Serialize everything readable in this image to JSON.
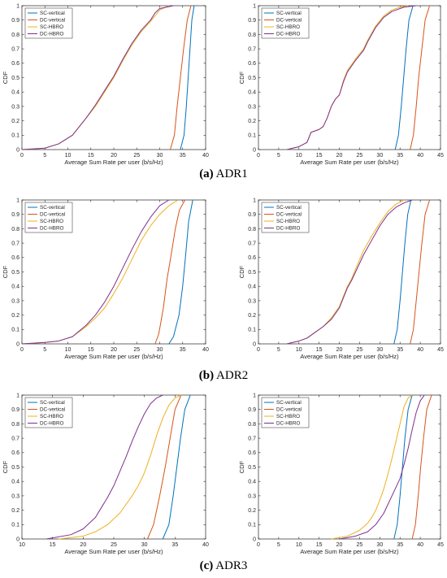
{
  "captions": [
    {
      "label": "(a)",
      "text": "ADR1"
    },
    {
      "label": "(b)",
      "text": "ADR2"
    },
    {
      "label": "(c)",
      "text": "ADR3"
    }
  ],
  "colors": {
    "SC-vertical": "#0072BD",
    "DC-vertical": "#D95319",
    "SC-HBRO": "#EDB120",
    "DC-HBRO": "#7E2F8E"
  },
  "chart_data": [
    {
      "id": "adr1-left",
      "type": "line",
      "grid": false,
      "legend_placement": "top-left",
      "xlabel": "Average Sum Rate per user (b/s/Hz)",
      "ylabel": "CDF",
      "xlim": [
        0,
        40
      ],
      "ylim": [
        0,
        1
      ],
      "xticks": [
        0,
        5,
        10,
        15,
        20,
        25,
        30,
        35,
        40
      ],
      "yticks": [
        0,
        0.1,
        0.2,
        0.3,
        0.4,
        0.5,
        0.6,
        0.7,
        0.8,
        0.9,
        1
      ],
      "series": [
        {
          "name": "SC-vertical",
          "x": [
            34.5,
            35.3,
            35.8,
            36.2,
            36.6,
            37.0,
            37.5
          ],
          "y": [
            0,
            0.1,
            0.3,
            0.5,
            0.7,
            0.9,
            1
          ]
        },
        {
          "name": "DC-vertical",
          "x": [
            32.3,
            33.2,
            33.8,
            34.5,
            35.2,
            36.0,
            36.8
          ],
          "y": [
            0,
            0.1,
            0.3,
            0.5,
            0.7,
            0.9,
            1
          ]
        },
        {
          "name": "SC-HBRO",
          "x": [
            0,
            5,
            8,
            11,
            14,
            16,
            18,
            20,
            22,
            24,
            26,
            28,
            29,
            30,
            32
          ],
          "y": [
            0,
            0.01,
            0.04,
            0.1,
            0.22,
            0.3,
            0.4,
            0.5,
            0.62,
            0.73,
            0.82,
            0.89,
            0.93,
            0.97,
            1
          ]
        },
        {
          "name": "DC-HBRO",
          "x": [
            0,
            5,
            8,
            11,
            14,
            16,
            18,
            20,
            22,
            24,
            26,
            28,
            29,
            30,
            33
          ],
          "y": [
            0,
            0.01,
            0.04,
            0.1,
            0.22,
            0.31,
            0.41,
            0.51,
            0.63,
            0.74,
            0.83,
            0.9,
            0.95,
            0.98,
            1
          ]
        }
      ]
    },
    {
      "id": "adr1-right",
      "type": "line",
      "grid": false,
      "legend_placement": "top-left",
      "xlabel": "Average Sum Rate per user (b/s/Hz)",
      "ylabel": "CDF",
      "xlim": [
        0,
        45
      ],
      "ylim": [
        0,
        1
      ],
      "xticks": [
        0,
        5,
        10,
        15,
        20,
        25,
        30,
        35,
        40,
        45
      ],
      "yticks": [
        0,
        0.1,
        0.2,
        0.3,
        0.4,
        0.5,
        0.6,
        0.7,
        0.8,
        0.9,
        1
      ],
      "series": [
        {
          "name": "SC-vertical",
          "x": [
            33.8,
            34.6,
            35.3,
            35.9,
            36.5,
            37.2,
            38.2
          ],
          "y": [
            0,
            0.1,
            0.3,
            0.5,
            0.7,
            0.9,
            1
          ]
        },
        {
          "name": "DC-vertical",
          "x": [
            37.5,
            38.3,
            39.0,
            39.6,
            40.4,
            41.2,
            42.3
          ],
          "y": [
            0,
            0.1,
            0.3,
            0.5,
            0.7,
            0.9,
            1
          ]
        },
        {
          "name": "SC-HBRO",
          "x": [
            7,
            10,
            12,
            13,
            15,
            16,
            17,
            18,
            19,
            20,
            21,
            22,
            24,
            26,
            27,
            29,
            31,
            33,
            35,
            37
          ],
          "y": [
            0,
            0.02,
            0.05,
            0.12,
            0.14,
            0.16,
            0.22,
            0.3,
            0.35,
            0.38,
            0.48,
            0.55,
            0.63,
            0.7,
            0.76,
            0.86,
            0.93,
            0.97,
            0.99,
            1
          ]
        },
        {
          "name": "DC-HBRO",
          "x": [
            7,
            10,
            12,
            13,
            15,
            16,
            17,
            18,
            19,
            20,
            21,
            22,
            24,
            26,
            27,
            29,
            31,
            33,
            36,
            39
          ],
          "y": [
            0,
            0.02,
            0.05,
            0.12,
            0.14,
            0.16,
            0.22,
            0.3,
            0.35,
            0.38,
            0.47,
            0.54,
            0.62,
            0.69,
            0.75,
            0.85,
            0.92,
            0.96,
            0.99,
            1
          ]
        }
      ]
    },
    {
      "id": "adr2-left",
      "type": "line",
      "grid": false,
      "legend_placement": "top-left",
      "xlabel": "Average Sum Rate per user (b/s/Hz)",
      "ylabel": "CDF",
      "xlim": [
        0,
        40
      ],
      "ylim": [
        0,
        1
      ],
      "xticks": [
        0,
        5,
        10,
        15,
        20,
        25,
        30,
        35,
        40
      ],
      "yticks": [
        0,
        0.1,
        0.2,
        0.3,
        0.4,
        0.5,
        0.6,
        0.7,
        0.8,
        0.9,
        1
      ],
      "series": [
        {
          "name": "SC-vertical",
          "x": [
            32.0,
            33.0,
            34.2,
            35.0,
            35.6,
            36.3,
            37.2
          ],
          "y": [
            0,
            0.05,
            0.2,
            0.4,
            0.6,
            0.85,
            1
          ]
        },
        {
          "name": "DC-vertical",
          "x": [
            29.0,
            29.8,
            30.8,
            31.6,
            32.5,
            33.4,
            34.3,
            35.5
          ],
          "y": [
            0,
            0.07,
            0.25,
            0.45,
            0.62,
            0.8,
            0.93,
            1
          ]
        },
        {
          "name": "SC-HBRO",
          "x": [
            0,
            5,
            8,
            11,
            14,
            16,
            18,
            20,
            22,
            24,
            26,
            28,
            30,
            32,
            34
          ],
          "y": [
            0,
            0.01,
            0.02,
            0.05,
            0.12,
            0.18,
            0.25,
            0.35,
            0.46,
            0.59,
            0.72,
            0.82,
            0.9,
            0.96,
            1
          ]
        },
        {
          "name": "DC-HBRO",
          "x": [
            0,
            5,
            8,
            11,
            14,
            16,
            18,
            20,
            22,
            24,
            26,
            28,
            30,
            32
          ],
          "y": [
            0,
            0.01,
            0.02,
            0.05,
            0.13,
            0.2,
            0.29,
            0.4,
            0.53,
            0.66,
            0.78,
            0.88,
            0.96,
            1
          ]
        }
      ]
    },
    {
      "id": "adr2-right",
      "type": "line",
      "grid": false,
      "legend_placement": "top-left",
      "xlabel": "Average Sum Rate per user (b/s/Hz)",
      "ylabel": "CDF",
      "xlim": [
        0,
        45
      ],
      "ylim": [
        0,
        1
      ],
      "xticks": [
        0,
        5,
        10,
        15,
        20,
        25,
        30,
        35,
        40,
        45
      ],
      "yticks": [
        0,
        0.1,
        0.2,
        0.3,
        0.4,
        0.5,
        0.6,
        0.7,
        0.8,
        0.9,
        1
      ],
      "series": [
        {
          "name": "SC-vertical",
          "x": [
            33.5,
            34.3,
            35.0,
            35.6,
            36.2,
            36.9,
            37.7
          ],
          "y": [
            0,
            0.1,
            0.3,
            0.5,
            0.7,
            0.9,
            1
          ]
        },
        {
          "name": "DC-vertical",
          "x": [
            37.5,
            38.3,
            39.0,
            39.7,
            40.4,
            41.2,
            42.3
          ],
          "y": [
            0,
            0.1,
            0.3,
            0.5,
            0.7,
            0.9,
            1
          ]
        },
        {
          "name": "SC-HBRO",
          "x": [
            7,
            10,
            12,
            14,
            16,
            18,
            20,
            21,
            22,
            23,
            24,
            26,
            28,
            30,
            32,
            34,
            36
          ],
          "y": [
            0,
            0.02,
            0.04,
            0.08,
            0.12,
            0.18,
            0.26,
            0.33,
            0.4,
            0.45,
            0.52,
            0.65,
            0.75,
            0.84,
            0.92,
            0.97,
            1
          ]
        },
        {
          "name": "DC-HBRO",
          "x": [
            7,
            10,
            12,
            14,
            16,
            18,
            20,
            21,
            22,
            23,
            24,
            26,
            28,
            30,
            32,
            34,
            36,
            38
          ],
          "y": [
            0,
            0.02,
            0.04,
            0.08,
            0.12,
            0.17,
            0.25,
            0.32,
            0.39,
            0.44,
            0.5,
            0.62,
            0.72,
            0.82,
            0.9,
            0.95,
            0.98,
            1
          ]
        }
      ]
    },
    {
      "id": "adr3-left",
      "type": "line",
      "grid": false,
      "legend_placement": "top-left",
      "xlabel": "Average Sum Rate per user (b/s/Hz)",
      "ylabel": "CDF",
      "xlim": [
        10,
        40
      ],
      "ylim": [
        0,
        1
      ],
      "xticks": [
        10,
        15,
        20,
        25,
        30,
        35,
        40
      ],
      "yticks": [
        0,
        0.1,
        0.2,
        0.3,
        0.4,
        0.5,
        0.6,
        0.7,
        0.8,
        0.9,
        1
      ],
      "series": [
        {
          "name": "SC-vertical",
          "x": [
            33.0,
            34.0,
            34.7,
            35.3,
            35.9,
            36.6,
            37.5
          ],
          "y": [
            0,
            0.1,
            0.3,
            0.5,
            0.7,
            0.9,
            1
          ]
        },
        {
          "name": "DC-vertical",
          "x": [
            30.5,
            31.5,
            32.5,
            33.4,
            34.2,
            35.0,
            36.0
          ],
          "y": [
            0,
            0.1,
            0.3,
            0.5,
            0.7,
            0.9,
            1
          ]
        },
        {
          "name": "SC-HBRO",
          "x": [
            16,
            20,
            22,
            24,
            26,
            27,
            28,
            29,
            30,
            31,
            32,
            33,
            34,
            35,
            36
          ],
          "y": [
            0,
            0.02,
            0.05,
            0.1,
            0.18,
            0.24,
            0.3,
            0.37,
            0.46,
            0.58,
            0.72,
            0.84,
            0.93,
            0.98,
            1
          ]
        },
        {
          "name": "DC-HBRO",
          "x": [
            14,
            18,
            20,
            22,
            23,
            24,
            25,
            26,
            27,
            28,
            29,
            30,
            31,
            32,
            33
          ],
          "y": [
            0,
            0.03,
            0.07,
            0.15,
            0.22,
            0.29,
            0.37,
            0.47,
            0.57,
            0.68,
            0.78,
            0.87,
            0.94,
            0.98,
            1
          ]
        }
      ]
    },
    {
      "id": "adr3-right",
      "type": "line",
      "grid": false,
      "legend_placement": "top-left",
      "xlabel": "Average Sum Rate per user (b/s/Hz)",
      "ylabel": "CDF",
      "xlim": [
        0,
        45
      ],
      "ylim": [
        0,
        1
      ],
      "xticks": [
        0,
        5,
        10,
        15,
        20,
        25,
        30,
        35,
        40,
        45
      ],
      "yticks": [
        0,
        0.1,
        0.2,
        0.3,
        0.4,
        0.5,
        0.6,
        0.7,
        0.8,
        0.9,
        1
      ],
      "series": [
        {
          "name": "SC-vertical",
          "x": [
            33.5,
            34.3,
            35.0,
            35.6,
            36.2,
            37.0,
            38.0
          ],
          "y": [
            0,
            0.1,
            0.3,
            0.5,
            0.7,
            0.9,
            1
          ]
        },
        {
          "name": "DC-vertical",
          "x": [
            38.0,
            38.8,
            39.5,
            40.1,
            40.8,
            41.6,
            42.8
          ],
          "y": [
            0,
            0.1,
            0.3,
            0.5,
            0.7,
            0.9,
            1
          ]
        },
        {
          "name": "SC-HBRO",
          "x": [
            18,
            22,
            25,
            27,
            28,
            29,
            30,
            31,
            32,
            33,
            34,
            35,
            36,
            37,
            38
          ],
          "y": [
            0,
            0.02,
            0.06,
            0.11,
            0.15,
            0.2,
            0.27,
            0.35,
            0.45,
            0.56,
            0.68,
            0.8,
            0.92,
            0.98,
            1
          ]
        },
        {
          "name": "DC-HBRO",
          "x": [
            20,
            24,
            27,
            29,
            31,
            32,
            33,
            34,
            35,
            36,
            37,
            38,
            39,
            40,
            41
          ],
          "y": [
            0,
            0.02,
            0.05,
            0.1,
            0.18,
            0.24,
            0.3,
            0.36,
            0.42,
            0.52,
            0.63,
            0.76,
            0.88,
            0.96,
            1
          ]
        }
      ]
    }
  ]
}
